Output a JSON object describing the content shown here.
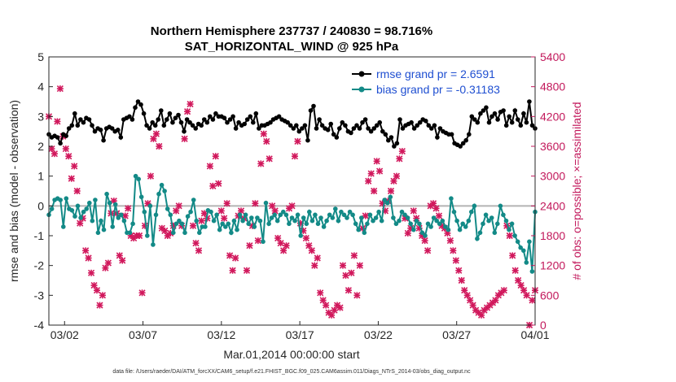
{
  "chart_data": {
    "type": "line",
    "title": "Northern Hemisphere 237737 / 240830 = 98.716%",
    "subtitle": "SAT_HORIZONTAL_WIND @ 925 hPa",
    "xlabel": "Mar.01,2014 00:00:00 start",
    "ylabel": "rmse and bias (model - observation)",
    "ylabel_right": "# of obs: o=possible; ×=assimilated",
    "footer": "data file: /Users/raeder/DAI/ATM_forcXX/CAM6_setup/f.e21.FHIST_BGC.f09_025.CAM6assim.011/Diags_NTrS_2014-03/obs_diag_output.nc",
    "ylim": [
      -4,
      5
    ],
    "ylim_right": [
      0,
      5400
    ],
    "xlim": [
      0,
      31
    ],
    "yticks": [
      "-4",
      "-3",
      "-2",
      "-1",
      "0",
      "1",
      "2",
      "3",
      "4",
      "5"
    ],
    "yticks_right": [
      "0",
      "600",
      "1200",
      "1800",
      "2400",
      "3000",
      "3600",
      "4200",
      "4800",
      "5400"
    ],
    "xticks": [
      {
        "label": "03/02",
        "x": 1
      },
      {
        "label": "03/07",
        "x": 6
      },
      {
        "label": "03/12",
        "x": 11
      },
      {
        "label": "03/17",
        "x": 16
      },
      {
        "label": "03/22",
        "x": 21
      },
      {
        "label": "03/27",
        "x": 26
      },
      {
        "label": "04/01",
        "x": 31
      }
    ],
    "legend_position": "top-right",
    "colors": {
      "rmse": "#000000",
      "bias": "#138a87",
      "obs": "#d1185c",
      "zero_line": "#b3b3b3"
    },
    "series": [
      {
        "name": "rmse grand pr = 2.6591",
        "axis": "left",
        "values": [
          2.4,
          2.3,
          2.35,
          2.3,
          2.1,
          2.4,
          2.35,
          2.6,
          2.7,
          3.1,
          2.7,
          2.9,
          2.8,
          2.95,
          2.9,
          2.7,
          2.5,
          2.6,
          2.55,
          2.2,
          2.6,
          2.65,
          2.6,
          2.5,
          2.55,
          2.3,
          2.9,
          2.95,
          3.0,
          2.9,
          3.3,
          3.5,
          3.4,
          3.1,
          2.7,
          2.6,
          2.8,
          2.7,
          2.9,
          3.2,
          2.7,
          2.9,
          3.1,
          2.8,
          2.95,
          3.05,
          2.8,
          2.5,
          2.9,
          2.8,
          2.7,
          2.6,
          2.75,
          2.7,
          2.9,
          2.8,
          3.0,
          2.9,
          3.1,
          3.0,
          3.0,
          2.95,
          2.8,
          2.9,
          3.0,
          2.6,
          2.8,
          2.7,
          2.75,
          2.9,
          3.0,
          2.8,
          3.1,
          2.6,
          2.7,
          2.7,
          2.75,
          2.8,
          2.9,
          2.95,
          3.0,
          2.9,
          2.85,
          2.8,
          2.7,
          2.6,
          2.7,
          2.5,
          2.6,
          2.7,
          2.2,
          3.2,
          3.35,
          2.6,
          2.9,
          2.7,
          2.6,
          2.55,
          2.75,
          2.4,
          2.3,
          2.6,
          2.8,
          2.7,
          2.5,
          2.45,
          2.6,
          2.7,
          2.6,
          2.8,
          2.9,
          2.6,
          2.5,
          2.6,
          2.7,
          2.8,
          2.5,
          2.4,
          2.2,
          2.3,
          2.0,
          2.1,
          2.9,
          2.6,
          2.7,
          2.75,
          2.8,
          2.6,
          2.7,
          2.8,
          2.9,
          2.85,
          2.7,
          2.6,
          2.7,
          2.3,
          2.6,
          2.5,
          2.45,
          2.4,
          2.4,
          2.1,
          2.05,
          2.0,
          2.1,
          2.2,
          2.4,
          3.0,
          2.9,
          2.8,
          3.1,
          3.2,
          3.3,
          2.8,
          3.0,
          3.1,
          2.9,
          3.15,
          3.2,
          2.7,
          3.0,
          2.8,
          3.2,
          2.9,
          2.7,
          3.1,
          2.8,
          3.5,
          2.7,
          2.6
        ]
      },
      {
        "name": "bias grand pr = -0.31183",
        "axis": "left",
        "values": [
          -0.3,
          -0.1,
          0.2,
          0.25,
          0.2,
          -0.7,
          0.25,
          -0.1,
          -0.15,
          -0.35,
          0.0,
          -0.4,
          -0.2,
          -0.1,
          0.1,
          -0.5,
          0.2,
          -0.9,
          -0.5,
          -0.8,
          0.4,
          0.1,
          -0.7,
          0.05,
          -0.4,
          -0.3,
          -0.5,
          -0.9,
          -0.9,
          -0.6,
          1.0,
          0.9,
          0.3,
          -0.2,
          -1.0,
          0.0,
          -1.3,
          -0.3,
          0.4,
          0.7,
          0.5,
          -0.1,
          -0.3,
          -0.9,
          -0.6,
          -0.5,
          -0.6,
          -0.9,
          -0.35,
          -0.2,
          0.2,
          -0.5,
          -0.9,
          -0.7,
          -0.7,
          -0.15,
          -0.2,
          -0.5,
          -0.3,
          -0.8,
          -0.6,
          -0.7,
          -0.6,
          -0.9,
          -0.5,
          -0.8,
          -0.3,
          -0.5,
          -0.3,
          -0.6,
          -0.4,
          -0.7,
          -0.4,
          -0.5,
          -1.2,
          0.1,
          -0.6,
          -0.4,
          -0.3,
          -0.5,
          -0.3,
          -0.2,
          -0.3,
          -0.6,
          -0.4,
          -0.5,
          -0.3,
          -1.0,
          -0.4,
          -0.6,
          -0.2,
          -0.5,
          -0.3,
          -0.6,
          -0.4,
          -0.7,
          -0.5,
          -0.3,
          -0.4,
          -0.1,
          -0.5,
          -0.2,
          -0.3,
          -0.4,
          -0.2,
          -0.3,
          -0.6,
          -0.8,
          -0.4,
          -0.9,
          -0.6,
          -0.3,
          -0.5,
          -0.4,
          -0.2,
          -0.5,
          0.2,
          0.1,
          0.3,
          -0.4,
          -0.6,
          -0.5,
          -0.2,
          -0.3,
          -0.4,
          -0.6,
          -0.8,
          -0.5,
          -0.6,
          -0.9,
          -1.0,
          -0.6,
          -0.7,
          -0.4,
          -0.5,
          -0.6,
          -0.5,
          -0.7,
          -0.8,
          0.25,
          -0.2,
          -0.5,
          -0.8,
          -0.6,
          -0.7,
          -0.5,
          -0.2,
          0.0,
          -1.1,
          -0.9,
          -0.6,
          -0.3,
          -0.5,
          -0.4,
          -0.9,
          -0.6,
          0.0,
          -0.3,
          -0.5,
          -0.8,
          -0.6,
          -1.0,
          -1.2,
          -1.4,
          -1.5,
          -1.9,
          -1.2,
          -2.2,
          -0.2
        ]
      },
      {
        "name": "obs",
        "axis": "right",
        "values": [
          4200,
          3550,
          3450,
          4100,
          4760,
          3800,
          3550,
          3400,
          2950,
          3200,
          2700,
          2050,
          2150,
          1500,
          1350,
          1050,
          800,
          700,
          400,
          600,
          1150,
          1250,
          2250,
          2500,
          2250,
          1400,
          1300,
          2200,
          2350,
          1800,
          1750,
          1800,
          1800,
          650,
          2000,
          2450,
          3000,
          3750,
          3850,
          3600,
          1950,
          1900,
          1800,
          1850,
          2000,
          2300,
          2400,
          2000,
          3750,
          4300,
          4450,
          2000,
          1650,
          1500,
          2100,
          2250,
          2150,
          3200,
          2800,
          3400,
          2850,
          2300,
          2150,
          2450,
          1400,
          1100,
          1350,
          2200,
          2300,
          2150,
          1100,
          1600,
          2000,
          2450,
          1700,
          3250,
          3850,
          3700,
          3350,
          2400,
          2300,
          1750,
          1650,
          1500,
          1600,
          2350,
          2400,
          3400,
          3700,
          2050,
          1900,
          1750,
          1600,
          1500,
          1200,
          1350,
          650,
          500,
          400,
          250,
          200,
          300,
          400,
          350,
          1200,
          1000,
          700,
          1050,
          1400,
          600,
          1200,
          1950,
          2200,
          2900,
          3050,
          2700,
          3300,
          3100,
          2450,
          2300,
          2500,
          2700,
          2900,
          3000,
          3350,
          3500,
          2150,
          1850,
          1950,
          2300,
          2150,
          1950,
          1800,
          1700,
          1500,
          2400,
          2450,
          2350,
          2200,
          2000,
          1950,
          1850,
          1700,
          1500,
          1300,
          1100,
          900,
          700,
          600,
          500,
          400,
          300,
          250,
          200,
          300,
          350,
          400,
          450,
          500,
          600,
          650,
          700,
          2000,
          1800,
          1400,
          1100,
          900,
          800,
          700,
          600,
          0,
          500,
          700
        ]
      }
    ]
  }
}
